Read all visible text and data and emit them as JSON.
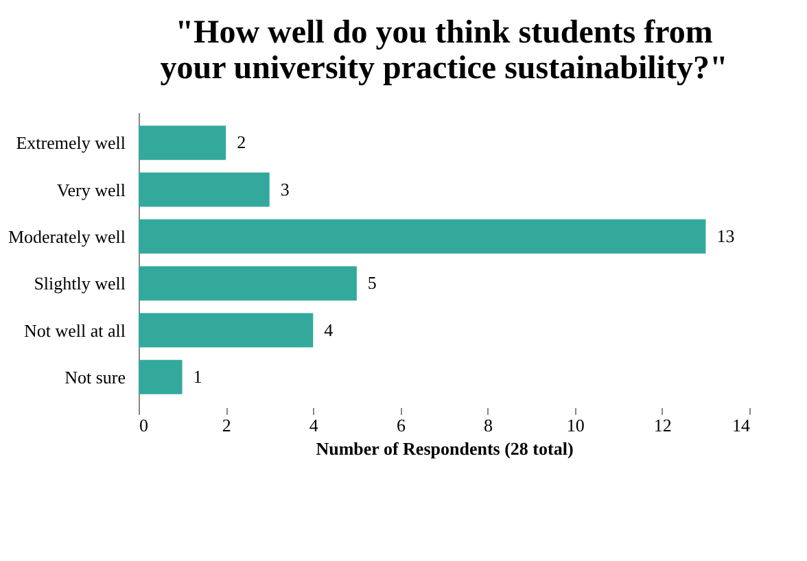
{
  "chart_data": {
    "type": "bar",
    "orientation": "horizontal",
    "title": [
      "\"How well do you think students from",
      "your university practice sustainability?\""
    ],
    "categories": [
      "Extremely well",
      "Very well",
      "Moderately well",
      "Slightly well",
      "Not well at all",
      "Not sure"
    ],
    "values": [
      2,
      3,
      13,
      5,
      4,
      1
    ],
    "color": "#33a99b",
    "xlim": [
      0,
      14
    ],
    "xticks": [
      0,
      2,
      4,
      6,
      8,
      10,
      12,
      14
    ],
    "xlabel": "Number of Respondents (28 total)",
    "data_labels": true,
    "grid": false
  }
}
